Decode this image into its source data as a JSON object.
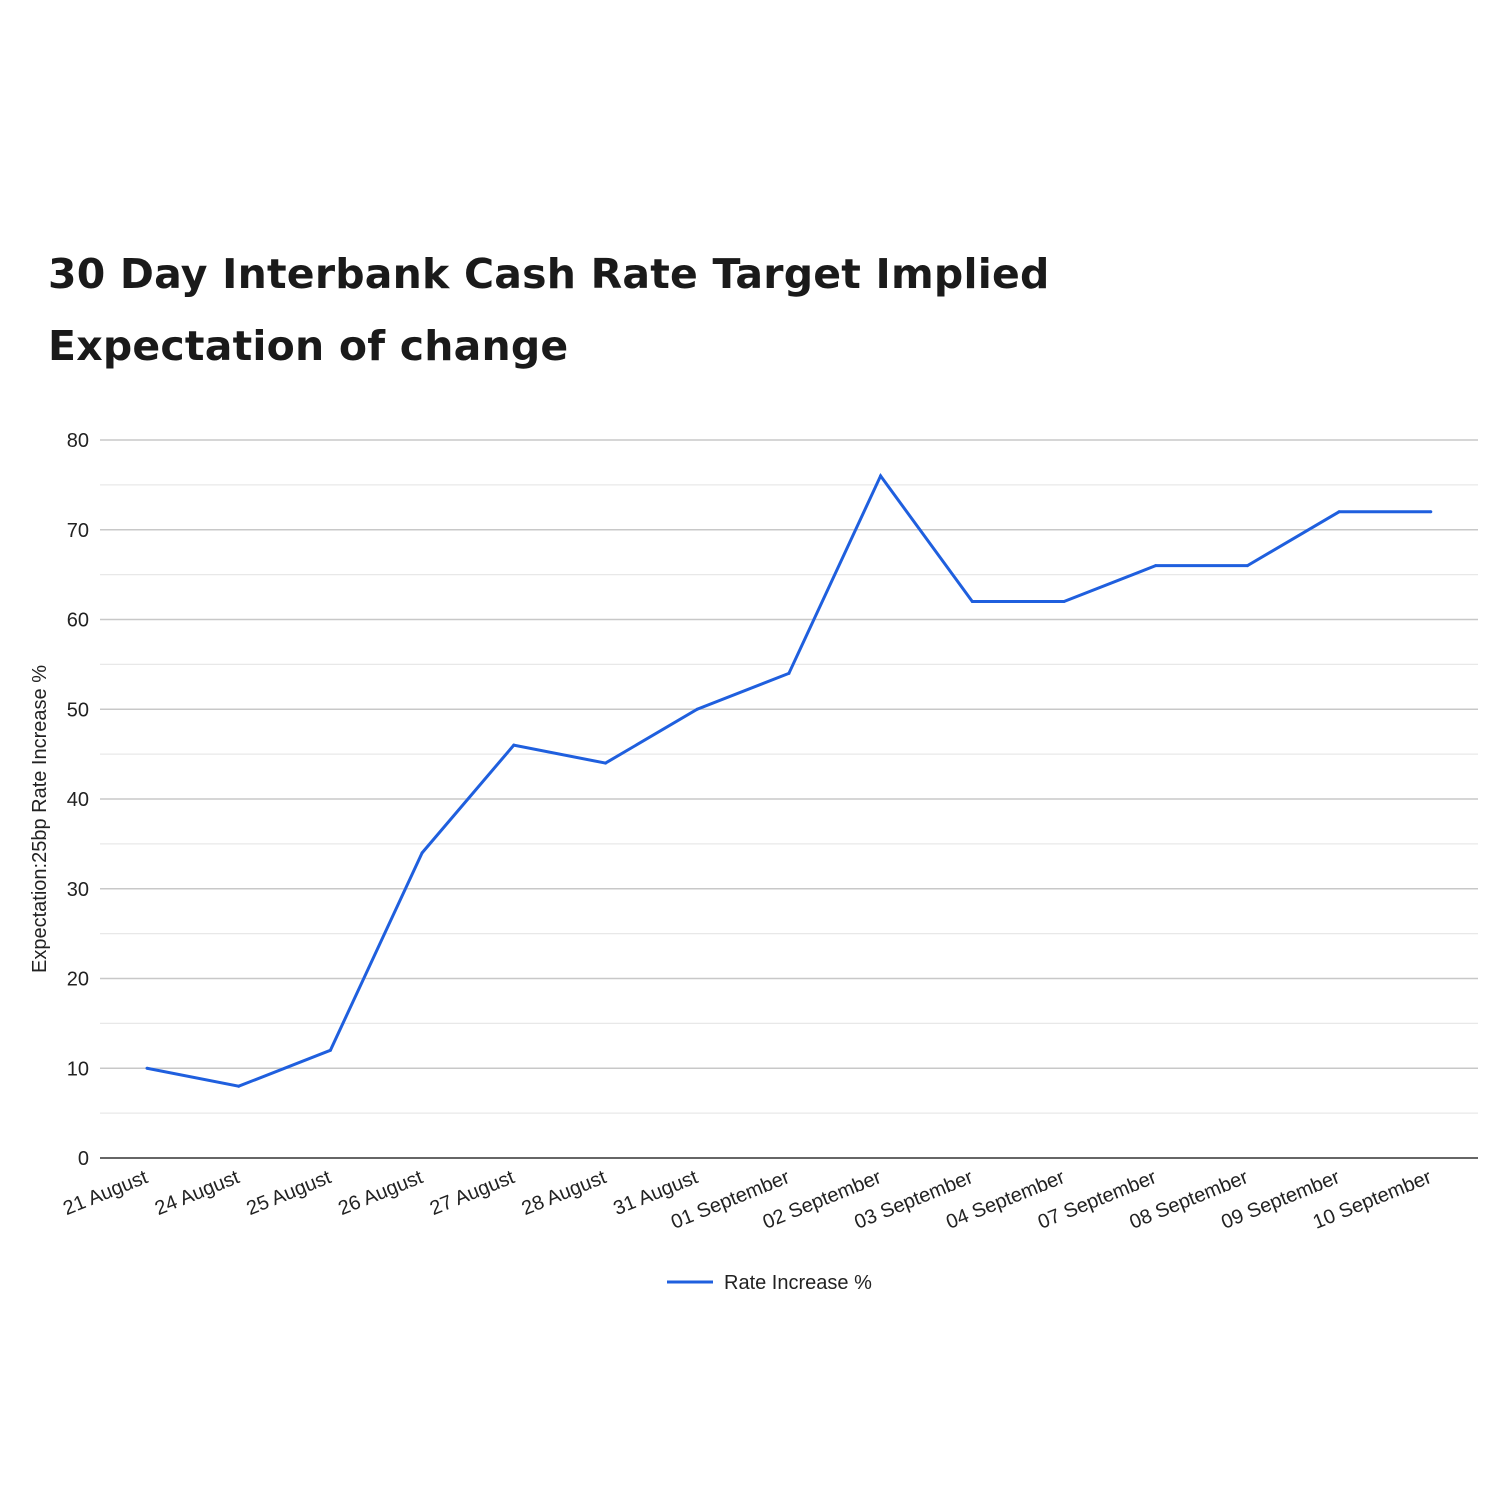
{
  "chart_data": {
    "type": "line",
    "title_lines": [
      "30 Day Interbank Cash Rate Target Implied",
      "Expectation of change"
    ],
    "xlabel": "",
    "ylabel": "Expectation:25bp Rate Increase %",
    "categories": [
      "21 August",
      "24 August",
      "25 August",
      "26 August",
      "27 August",
      "28 August",
      "31 August",
      "01 September",
      "02 September",
      "03 September",
      "04 September",
      "07 September",
      "08 September",
      "09 September",
      "10 September"
    ],
    "series": [
      {
        "name": "Rate Increase %",
        "color": "#1f5fde",
        "values": [
          10,
          8,
          12,
          34,
          46,
          44,
          50,
          54,
          76,
          62,
          62,
          66,
          66,
          72,
          72
        ]
      }
    ],
    "ylim": [
      0,
      80
    ],
    "yticks": [
      0,
      10,
      20,
      30,
      40,
      50,
      60,
      70,
      80
    ],
    "minor_gridlines": true,
    "grid": true,
    "legend": "bottom-center"
  }
}
